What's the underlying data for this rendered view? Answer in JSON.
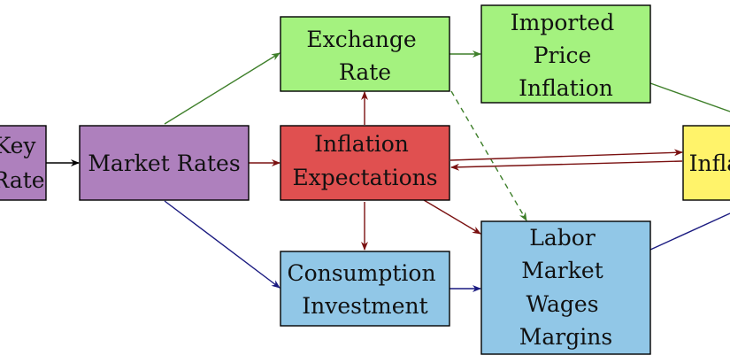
{
  "colors": {
    "purple": "#ae80bd",
    "green": "#a4f27f",
    "red": "#e05050",
    "blue": "#91c7e7",
    "yellow": "#fff36a",
    "edge_black": "#000000",
    "edge_green": "#3e7f2a",
    "edge_darkred": "#7a1010",
    "edge_navy": "#1a1a80"
  },
  "nodes": {
    "key_rate": {
      "lines": [
        "Key",
        "Rate"
      ]
    },
    "market_rates": {
      "lines": [
        "Market Rates"
      ]
    },
    "exchange_rate": {
      "lines": [
        "Exchange",
        "Rate"
      ]
    },
    "imported_price_inflation": {
      "lines": [
        "Imported",
        "Price",
        "Inflation"
      ]
    },
    "inflation_expectations": {
      "lines": [
        "Inflation",
        "Expectations"
      ]
    },
    "inflation": {
      "lines": [
        "Inflation"
      ]
    },
    "consumption_investment": {
      "lines": [
        "Consumption",
        "Investment"
      ]
    },
    "labor_market": {
      "lines": [
        "Labor",
        "Market",
        "Wages",
        "Margins"
      ]
    }
  }
}
